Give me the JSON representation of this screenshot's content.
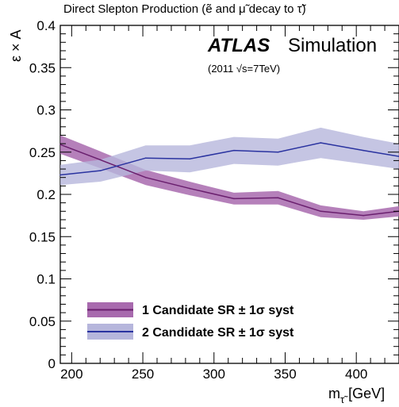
{
  "chart_data": {
    "type": "line",
    "title": "Direct Slepton Production (ẽ and μ̃ decay to τ̃)",
    "experiment_label": "ATLAS",
    "experiment_sublabel": "Simulation",
    "energy_label": "(2011 √s=7TeV)",
    "xlabel": "m",
    "xlabel_sub": "τ̃",
    "xlabel_unit": " [GeV]",
    "ylabel": "ε × A",
    "xlim": [
      192,
      430
    ],
    "ylim": [
      0,
      0.4
    ],
    "xticks": [
      200,
      250,
      300,
      350,
      400
    ],
    "yticks": [
      0,
      0.05,
      0.1,
      0.15,
      0.2,
      0.25,
      0.3,
      0.35,
      0.4
    ],
    "ytick_labels": [
      "0",
      "0.05",
      "0.1",
      "0.15",
      "0.2",
      "0.25",
      "0.3",
      "0.35",
      "0.4"
    ],
    "grid": false,
    "legend_position": "bottom-left",
    "series": [
      {
        "name": "1 Candidate SR ± 1σ syst",
        "line_color": "#6a1f6e",
        "band_color": "#a86aae",
        "x": [
          192,
          220,
          252,
          283,
          314,
          345,
          375,
          405,
          430
        ],
        "y": [
          0.259,
          0.241,
          0.22,
          0.207,
          0.195,
          0.196,
          0.18,
          0.175,
          0.18
        ],
        "band_half": [
          0.011,
          0.01,
          0.009,
          0.008,
          0.007,
          0.008,
          0.007,
          0.005,
          0.006
        ]
      },
      {
        "name": "2 Candidate SR ± 1σ syst",
        "line_color": "#2a33a0",
        "band_color": "#b6b6dc",
        "x": [
          192,
          220,
          252,
          283,
          314,
          345,
          375,
          405,
          430
        ],
        "y": [
          0.223,
          0.228,
          0.243,
          0.242,
          0.252,
          0.25,
          0.261,
          0.252,
          0.245
        ],
        "band_half": [
          0.012,
          0.013,
          0.015,
          0.016,
          0.016,
          0.016,
          0.018,
          0.016,
          0.015
        ]
      }
    ]
  }
}
